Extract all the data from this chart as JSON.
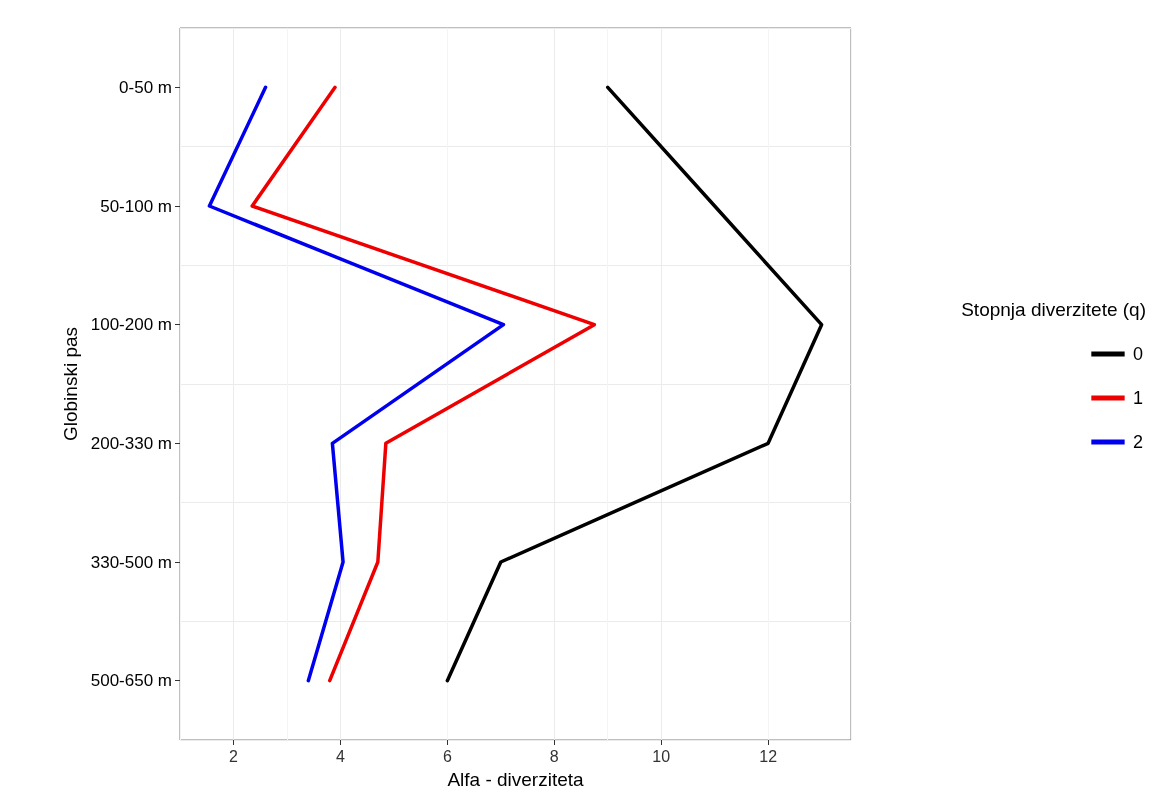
{
  "chart_data": {
    "type": "line",
    "orientation": "horizontal",
    "xlabel": "Alfa - diverziteta",
    "ylabel": "Globinski pas",
    "legend_title": "Stopnja diverzitete (q)",
    "categories": [
      "0-50 m",
      "50-100 m",
      "100-200 m",
      "200-330 m",
      "330-500 m",
      "500-650 m"
    ],
    "xlim": [
      1.0,
      13.55
    ],
    "xticks": [
      2,
      4,
      6,
      8,
      10,
      12
    ],
    "series": [
      {
        "name": "0",
        "color": "#000000",
        "values": [
          9.0,
          11.0,
          13.0,
          12.0,
          7.0,
          6.0
        ]
      },
      {
        "name": "1",
        "color": "#ee0000",
        "values": [
          3.9,
          2.35,
          8.75,
          4.85,
          4.7,
          3.8
        ]
      },
      {
        "name": "2",
        "color": "#0000ee",
        "values": [
          2.6,
          1.55,
          7.05,
          3.85,
          4.05,
          3.4
        ]
      }
    ],
    "grid": true,
    "legend": "right",
    "marker": "none",
    "line_style": "solid"
  }
}
